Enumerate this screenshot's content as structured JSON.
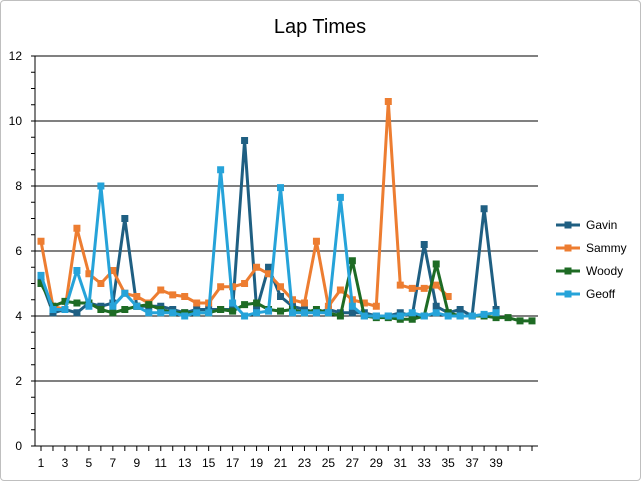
{
  "chart_data": {
    "type": "line",
    "title": "Lap Times",
    "xlabel": "",
    "ylabel": "",
    "ylim": [
      0,
      12
    ],
    "y_ticks": [
      0,
      2,
      4,
      6,
      8,
      10,
      12
    ],
    "x_ticks": [
      "1",
      "3",
      "5",
      "7",
      "9",
      "11",
      "13",
      "15",
      "17",
      "19",
      "21",
      "23",
      "25",
      "27",
      "29",
      "31",
      "33",
      "35",
      "37",
      "39"
    ],
    "x_range": [
      1,
      42
    ],
    "grid": "horizontal",
    "legend": "right",
    "series": [
      {
        "name": "Gavin",
        "color": "#1f5f82",
        "values": [
          5.1,
          4.1,
          4.2,
          4.1,
          4.4,
          4.3,
          4.4,
          7.0,
          4.3,
          4.3,
          4.3,
          4.2,
          4.1,
          4.2,
          4.2,
          4.2,
          4.2,
          9.4,
          4.2,
          5.5,
          4.6,
          4.3,
          4.2,
          4.1,
          4.2,
          4.1,
          4.1,
          4.1,
          4.0,
          4.0,
          4.1,
          4.0,
          6.2,
          4.3,
          4.1,
          4.2,
          4.0,
          7.3,
          4.2
        ]
      },
      {
        "name": "Sammy",
        "color": "#ed7d31",
        "values": [
          6.3,
          4.3,
          4.2,
          6.7,
          5.3,
          5.0,
          5.4,
          4.7,
          4.6,
          4.4,
          4.8,
          4.65,
          4.6,
          4.4,
          4.4,
          4.9,
          4.9,
          5.0,
          5.5,
          5.3,
          4.9,
          4.5,
          4.4,
          6.3,
          4.3,
          4.8,
          4.5,
          4.4,
          4.3,
          10.6,
          4.95,
          4.85,
          4.85,
          4.95,
          4.6
        ]
      },
      {
        "name": "Woody",
        "color": "#1e6b24",
        "values": [
          5.0,
          4.3,
          4.45,
          4.4,
          4.4,
          4.2,
          4.1,
          4.2,
          4.3,
          4.35,
          4.2,
          4.1,
          4.1,
          4.1,
          4.1,
          4.2,
          4.15,
          4.35,
          4.4,
          4.2,
          4.15,
          4.2,
          4.1,
          4.2,
          4.1,
          4.0,
          5.7,
          4.0,
          3.95,
          3.95,
          3.9,
          3.9,
          4.0,
          5.6,
          4.1,
          4.0,
          4.0,
          4.0,
          3.95,
          3.95,
          3.85,
          3.85
        ]
      },
      {
        "name": "Geoff",
        "color": "#26a3d9",
        "values": [
          5.25,
          4.2,
          4.2,
          5.4,
          4.3,
          8.0,
          4.3,
          4.7,
          4.3,
          4.1,
          4.1,
          4.1,
          4.0,
          4.1,
          4.1,
          8.5,
          4.4,
          4.0,
          4.1,
          4.15,
          7.95,
          4.1,
          4.1,
          4.1,
          4.1,
          7.65,
          4.3,
          4.0,
          4.0,
          4.0,
          4.0,
          4.1,
          4.0,
          4.1,
          4.0,
          4.0,
          4.0,
          4.05,
          4.1
        ]
      }
    ]
  }
}
